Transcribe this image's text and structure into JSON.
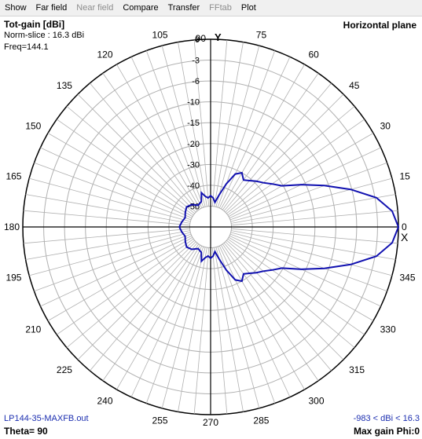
{
  "menu": [
    {
      "label": "Show",
      "enabled": true
    },
    {
      "label": "Far field",
      "enabled": true
    },
    {
      "label": "Near field",
      "enabled": false
    },
    {
      "label": "Compare",
      "enabled": true
    },
    {
      "label": "Transfer",
      "enabled": true
    },
    {
      "label": "FFtab",
      "enabled": false
    },
    {
      "label": "Plot",
      "enabled": true
    }
  ],
  "header": {
    "quantity": "Tot-gain [dBi]",
    "norm_slice": "Norm-slice : 16.3 dBi",
    "freq": "Freq=144.1",
    "plane": "Horizontal plane"
  },
  "footer": {
    "filename": "LP144-35-MAXFB.out",
    "range": "-983 < dBi < 16.3",
    "theta": "Theta= 90",
    "max_gain": "Max gain Phi:0"
  },
  "axis_labels": {
    "x": "X",
    "y": "Y"
  },
  "colors": {
    "pattern": "#1010b0",
    "grid": "#b0b0b0",
    "axis": "#000000",
    "range_text": "#1c2fb0"
  },
  "chart_data": {
    "type": "polar",
    "angular_labels": [
      "0",
      "15",
      "30",
      "45",
      "60",
      "75",
      "90",
      "105",
      "120",
      "135",
      "150",
      "165",
      "180",
      "195",
      "210",
      "225",
      "240",
      "255",
      "270",
      "285",
      "300",
      "315",
      "330",
      "345"
    ],
    "radial_labels": [
      "0",
      "-3",
      "-6",
      "-10",
      "-15",
      "-20",
      "-30",
      "-40",
      "-50"
    ],
    "radial_levels_db": [
      0,
      -3,
      -6,
      -10,
      -15,
      -20,
      -30,
      -40,
      -50
    ],
    "pattern": {
      "name": "Tot-gain",
      "phi_deg": [
        0,
        5,
        10,
        15,
        20,
        25,
        30,
        35,
        40,
        45,
        50,
        55,
        60,
        65,
        70,
        75,
        80,
        85,
        90,
        95,
        100,
        105,
        110,
        120,
        130,
        140,
        150,
        160,
        170,
        180,
        190,
        200,
        210,
        220,
        230,
        240,
        250,
        255,
        260,
        265,
        270,
        275,
        280,
        285,
        290,
        295,
        300,
        305,
        310,
        315,
        320,
        325,
        330,
        335,
        340,
        345,
        350,
        355,
        360
      ],
      "gain_db": [
        0,
        -0.8,
        -2.8,
        -6.2,
        -11,
        -16,
        -20.5,
        -24,
        -27,
        -29,
        -31,
        -32.5,
        -30,
        -32,
        -38,
        -44,
        -48,
        -46,
        -45,
        -46,
        -45,
        -43,
        -47,
        -48,
        -46,
        -45,
        -46,
        -47,
        -46,
        -45,
        -46,
        -47,
        -46,
        -45,
        -46,
        -48,
        -47,
        -43,
        -45,
        -46,
        -45,
        -46,
        -48,
        -44,
        -38,
        -32,
        -30,
        -32.5,
        -31,
        -29,
        -27,
        -24,
        -20.5,
        -16,
        -11,
        -6.2,
        -2.8,
        -0.8,
        0
      ]
    }
  }
}
